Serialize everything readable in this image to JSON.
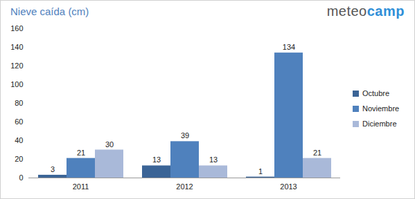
{
  "chart_data": {
    "type": "bar",
    "title": "Nieve caída (cm)",
    "annotations": [
      "meteocamp"
    ],
    "categories": [
      "2011",
      "2012",
      "2013"
    ],
    "series": [
      {
        "name": "Octubre",
        "color": "#3b6496",
        "values": [
          3,
          13,
          1
        ]
      },
      {
        "name": "Noviembre",
        "color": "#4f81bd",
        "values": [
          21,
          39,
          134
        ]
      },
      {
        "name": "Diciembre",
        "color": "#a9b9d9",
        "values": [
          30,
          13,
          21
        ]
      }
    ],
    "ylim": [
      0,
      160
    ],
    "yticks": [
      0,
      20,
      40,
      60,
      80,
      100,
      120,
      140,
      160
    ],
    "grid": false,
    "legend": "right",
    "data_labels": true
  }
}
